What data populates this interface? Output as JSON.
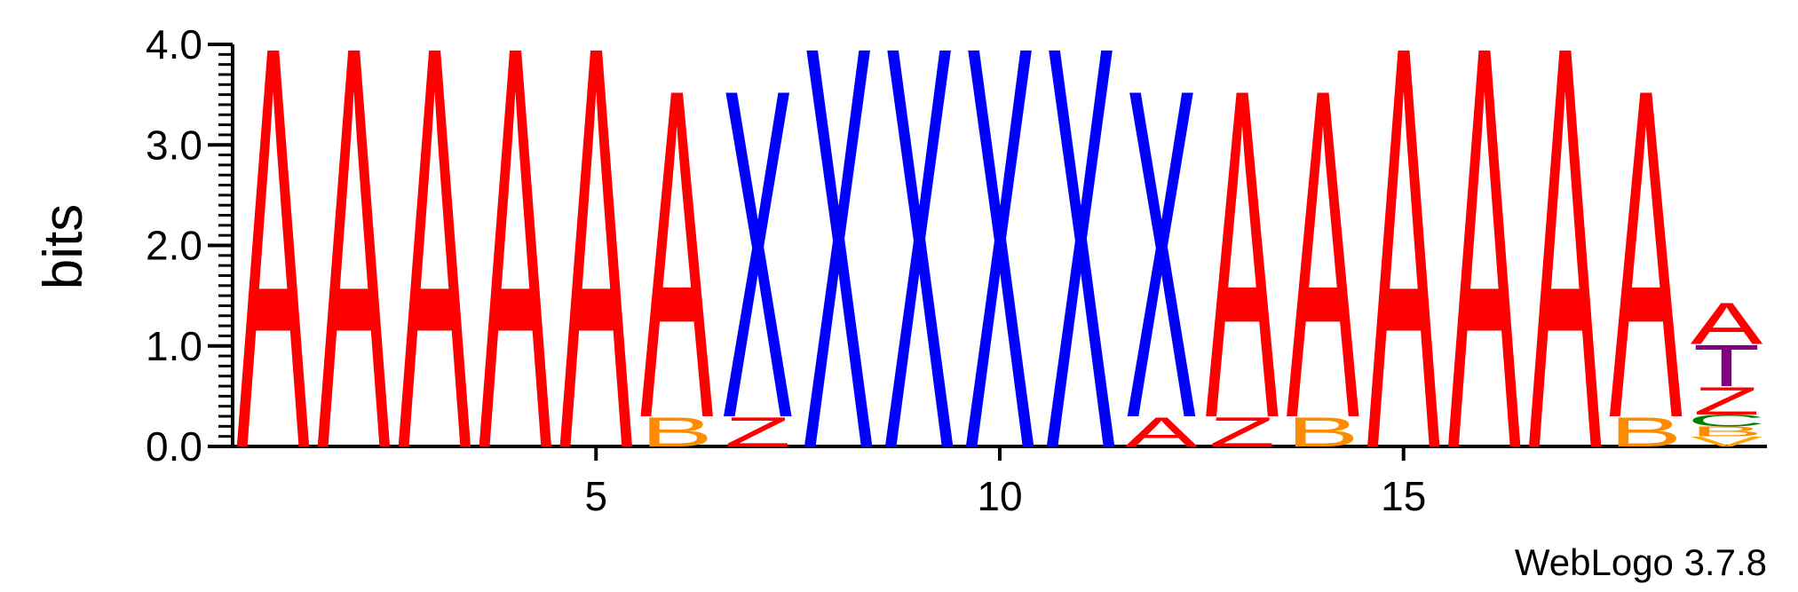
{
  "chart_data": {
    "type": "sequence-logo",
    "ylabel": "bits",
    "ylim": [
      0,
      4.0
    ],
    "yticks": [
      "0.0",
      "1.0",
      "2.0",
      "3.0",
      "4.0"
    ],
    "xticks": [
      {
        "value": 5,
        "label": "5"
      },
      {
        "value": 10,
        "label": "10"
      },
      {
        "value": 15,
        "label": "15"
      }
    ],
    "x_range": [
      0.5,
      19.5
    ],
    "credit": "WebLogo 3.7.8",
    "colors": {
      "A": "#ff0000",
      "Z": "#ff0000",
      "X": "#0000ff",
      "B": "#ff8c00",
      "T": "#800080",
      "C": "#008000",
      "V": "#ffa500"
    },
    "positions": [
      {
        "pos": 1,
        "stack": [
          {
            "letter": "A",
            "bits": 4.1
          }
        ]
      },
      {
        "pos": 2,
        "stack": [
          {
            "letter": "A",
            "bits": 4.1
          }
        ]
      },
      {
        "pos": 3,
        "stack": [
          {
            "letter": "A",
            "bits": 4.1
          }
        ]
      },
      {
        "pos": 4,
        "stack": [
          {
            "letter": "A",
            "bits": 4.1
          }
        ]
      },
      {
        "pos": 5,
        "stack": [
          {
            "letter": "A",
            "bits": 4.1
          }
        ]
      },
      {
        "pos": 6,
        "stack": [
          {
            "letter": "B",
            "bits": 0.3
          },
          {
            "letter": "A",
            "bits": 3.35
          }
        ]
      },
      {
        "pos": 7,
        "stack": [
          {
            "letter": "Z",
            "bits": 0.3
          },
          {
            "letter": "X",
            "bits": 3.35
          }
        ]
      },
      {
        "pos": 8,
        "stack": [
          {
            "letter": "X",
            "bits": 4.1
          }
        ]
      },
      {
        "pos": 9,
        "stack": [
          {
            "letter": "X",
            "bits": 4.1
          }
        ]
      },
      {
        "pos": 10,
        "stack": [
          {
            "letter": "X",
            "bits": 4.1
          }
        ]
      },
      {
        "pos": 11,
        "stack": [
          {
            "letter": "X",
            "bits": 4.1
          }
        ]
      },
      {
        "pos": 12,
        "stack": [
          {
            "letter": "A",
            "bits": 0.3
          },
          {
            "letter": "X",
            "bits": 3.35
          }
        ]
      },
      {
        "pos": 13,
        "stack": [
          {
            "letter": "Z",
            "bits": 0.3
          },
          {
            "letter": "A",
            "bits": 3.35
          }
        ]
      },
      {
        "pos": 14,
        "stack": [
          {
            "letter": "B",
            "bits": 0.3
          },
          {
            "letter": "A",
            "bits": 3.35
          }
        ]
      },
      {
        "pos": 15,
        "stack": [
          {
            "letter": "A",
            "bits": 4.1
          }
        ]
      },
      {
        "pos": 16,
        "stack": [
          {
            "letter": "A",
            "bits": 4.1
          }
        ]
      },
      {
        "pos": 17,
        "stack": [
          {
            "letter": "A",
            "bits": 4.1
          }
        ]
      },
      {
        "pos": 18,
        "stack": [
          {
            "letter": "B",
            "bits": 0.3
          },
          {
            "letter": "A",
            "bits": 3.35
          }
        ]
      },
      {
        "pos": 19,
        "stack": [
          {
            "letter": "V",
            "bits": 0.1
          },
          {
            "letter": "B",
            "bits": 0.1
          },
          {
            "letter": "C",
            "bits": 0.12
          },
          {
            "letter": "Z",
            "bits": 0.28
          },
          {
            "letter": "T",
            "bits": 0.42
          },
          {
            "letter": "A",
            "bits": 0.42
          }
        ]
      }
    ]
  }
}
